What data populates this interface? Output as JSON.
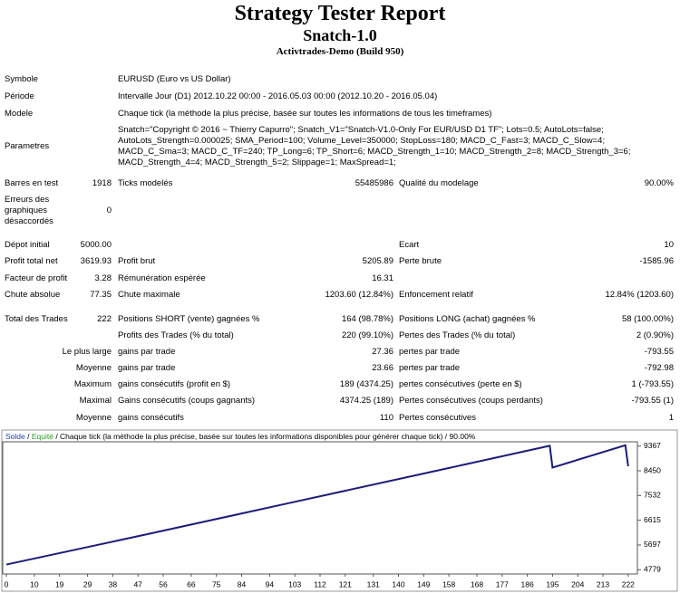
{
  "header": {
    "title": "Strategy Tester Report",
    "subtitle": "Snatch-1.0",
    "broker": "Activtrades-Demo (Build 950)"
  },
  "table": {
    "rows": [
      {
        "l1": "Symbole",
        "l2": "EURUSD (Euro vs US Dollar)"
      },
      {
        "l1": "Période",
        "l2": "Intervalle Jour (D1) 2012.10.22 00:00 - 2016.05.03 00:00 (2012.10.20 - 2016.05.04)"
      },
      {
        "l1": "Modele",
        "l2": "Chaque tick (la méthode la plus précise, basée sur toutes les informations de tous les timeframes)"
      },
      {
        "l1": "Parametres",
        "l2": "Snatch=\"Copyright © 2016 ~ Thierry Capurro\"; Snatch_V1=\"Snatch-V1.0-Only For EUR/USD D1 TF\"; Lots=0.5; AutoLots=false; AutoLots_Strength=0.000025; SMA_Period=100; Volume_Level=350000; StopLoss=180; MACD_C_Fast=3; MACD_C_Slow=4; MACD_C_Sma=3; MACD_C_TF=240; TP_Long=6; TP_Short=6; MACD_Strength_1=10; MACD_Strength_2=8; MACD_Strength_3=6; MACD_Strength_4=4; MACD_Strength_5=2; Slippage=1; MaxSpread=1;"
      },
      {
        "l1": "Barres en test",
        "v1": "1918",
        "l2": "Ticks modelés",
        "v2": "55485986",
        "l3": "Qualité du modelage",
        "v3": "90.00%"
      },
      {
        "l1": "Erreurs des graphiques désaccordés",
        "v1": "0"
      },
      {
        "l1": "Dépot initial",
        "v1": "5000.00",
        "l3": "Ecart",
        "v3": "10"
      },
      {
        "l1": "Profit total net",
        "v1": "3619.93",
        "l2": "Profit brut",
        "v2": "5205.89",
        "l3": "Perte brute",
        "v3": "-1585.96"
      },
      {
        "l1": "Facteur de profit",
        "v1": "3.28",
        "l2": "Rémunération espérée",
        "v2": "16.31"
      },
      {
        "l1": "Chute absolue",
        "v1": "77.35",
        "l2": "Chute maximale",
        "v2": "1203.60 (12.84%)",
        "l3": "Enfoncement relatif",
        "v3": "12.84% (1203.60)"
      },
      {
        "l1": "Total des Trades",
        "v1": "222",
        "l2": "Positions SHORT (vente) gagnées %",
        "v2": "164 (98.78%)",
        "l3": "Positions LONG (achat) gagnées %",
        "v3": "58 (100.00%)"
      },
      {
        "l2": "Profits des Trades (% du total)",
        "v2": "220 (99.10%)",
        "l3": "Pertes des Trades (% du total)",
        "v3": "2 (0.90%)"
      },
      {
        "v1": "Le plus large",
        "l2": "gains par trade",
        "v2": "27.36",
        "l3": "pertes par trade",
        "v3": "-793.55"
      },
      {
        "v1": "Moyenne",
        "l2": "gains par trade",
        "v2": "23.66",
        "l3": "pertes par trade",
        "v3": "-792.98"
      },
      {
        "v1": "Maximum",
        "l2": "gains consécutifs (profit en $)",
        "v2": "189 (4374.25)",
        "l3": "pertes consécutives (perte en $)",
        "v3": "1 (-793.55)"
      },
      {
        "v1": "Maximal",
        "l2": "Gains consécutifs (coups gagnants)",
        "v2": "4374.25 (189)",
        "l3": "Pertes consécutives (coups perdants)",
        "v3": "-793.55 (1)"
      },
      {
        "v1": "Moyenne",
        "l2": "gains consécutifs",
        "v2": "110",
        "l3": "Pertes consécutives",
        "v3": "1"
      }
    ]
  },
  "chart": {
    "type": "line",
    "legend": [
      {
        "text": "Solde",
        "color": "#1f3fbf"
      },
      {
        "text": " / ",
        "color": "#000000"
      },
      {
        "text": "Equité",
        "color": "#2a9a2a"
      },
      {
        "text": " / Chaque tick (la méthode la plus précise, basée sur toutes les informations disponibles pour générer chaque tick) / 90.00%",
        "color": "#000000"
      }
    ],
    "x": [
      0,
      50,
      100,
      150,
      194,
      195,
      221,
      222
    ],
    "series": [
      {
        "name": "Solde",
        "color": "#1c1c78",
        "values": [
          4970,
          6090,
          7230,
          8370,
          9380,
          8570,
          9400,
          8620
        ]
      }
    ],
    "xlim": [
      0,
      224
    ],
    "ylim": [
      4620,
      9526
    ],
    "xticks": [
      0,
      10,
      19,
      29,
      38,
      47,
      56,
      66,
      75,
      84,
      94,
      103,
      112,
      121,
      131,
      140,
      149,
      158,
      168,
      177,
      186,
      195,
      204,
      213,
      222
    ],
    "yticks": [
      4779,
      5697,
      6615,
      7532,
      8450,
      9367
    ]
  }
}
